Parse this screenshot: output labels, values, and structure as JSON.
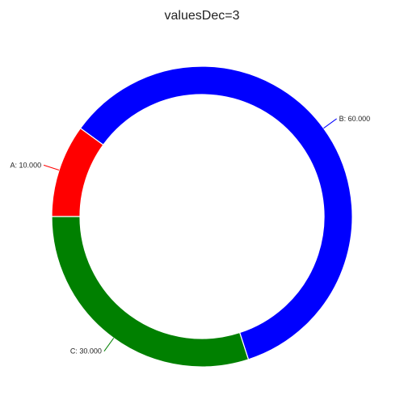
{
  "chart_data": {
    "type": "pie",
    "title": "valuesDec=3",
    "slices": [
      {
        "label": "A",
        "value": 10,
        "display": "A: 10.000",
        "color": "#ff0000"
      },
      {
        "label": "B",
        "value": 60,
        "display": "B: 60.000",
        "color": "#0000ff"
      },
      {
        "label": "C",
        "value": 30,
        "display": "C: 30.000",
        "color": "#008000"
      }
    ],
    "hole": "donut",
    "start_position": "left",
    "direction": "clockwise",
    "label_style": "outside-with-leader-lines"
  }
}
